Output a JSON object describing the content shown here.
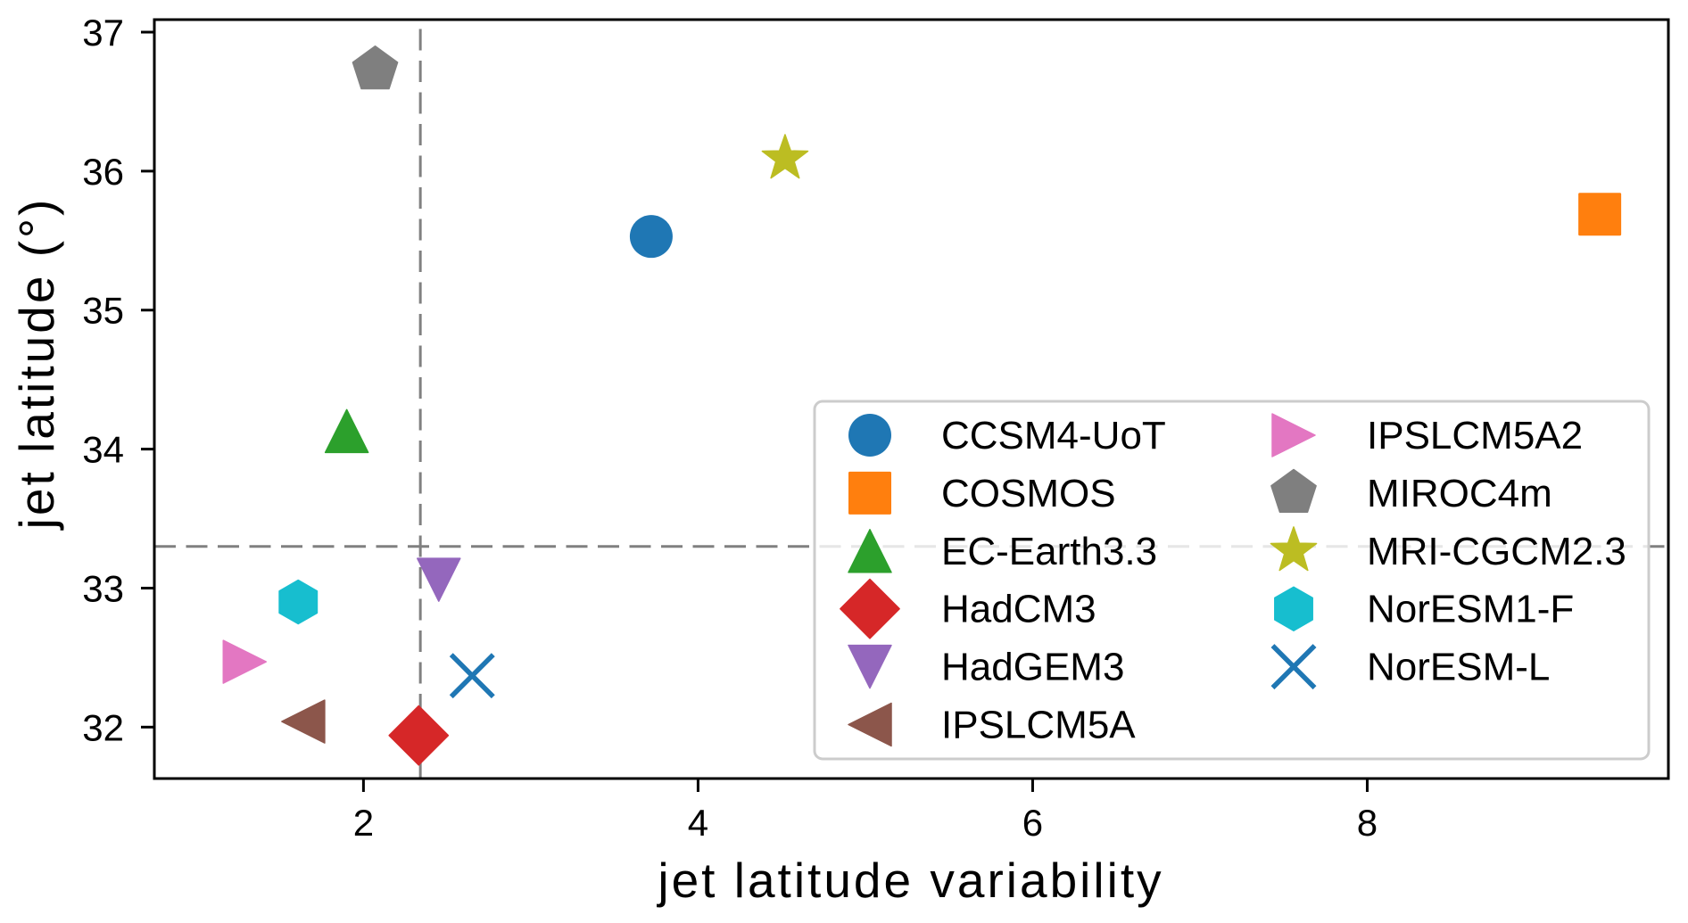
{
  "chart_data": {
    "type": "scatter",
    "title": "",
    "xlabel": "jet latitude variability",
    "ylabel": "jet latitude  (°)",
    "xlim": [
      0.75,
      9.8
    ],
    "ylim": [
      31.63,
      37.09
    ],
    "xticks": [
      2,
      4,
      6,
      8
    ],
    "xtick_labels": [
      "2",
      "4",
      "6",
      "8"
    ],
    "yticks": [
      32,
      33,
      34,
      35,
      36,
      37
    ],
    "ytick_labels": [
      "32",
      "33",
      "34",
      "35",
      "36",
      "37"
    ],
    "grid": false,
    "legend": {
      "placement": "lower-right",
      "columns": 2
    },
    "reference_lines": [
      {
        "orientation": "vertical",
        "value": 2.34,
        "style": "dashed",
        "color": "#808080"
      },
      {
        "orientation": "horizontal",
        "value": 33.3,
        "style": "dashed",
        "color": "#808080"
      }
    ],
    "series": [
      {
        "name": "CCSM4-UoT",
        "x": 3.72,
        "y": 35.53,
        "marker": "circle",
        "color": "#1f77b4"
      },
      {
        "name": "COSMOS",
        "x": 9.39,
        "y": 35.69,
        "marker": "square",
        "color": "#ff7f0e"
      },
      {
        "name": "EC-Earth3.3",
        "x": 1.9,
        "y": 34.13,
        "marker": "triangle-up",
        "color": "#2ca02c"
      },
      {
        "name": "HadCM3",
        "x": 2.33,
        "y": 31.94,
        "marker": "diamond",
        "color": "#d62728"
      },
      {
        "name": "HadGEM3",
        "x": 2.45,
        "y": 33.06,
        "marker": "triangle-down",
        "color": "#9467bd"
      },
      {
        "name": "IPSLCM5A",
        "x": 1.64,
        "y": 32.04,
        "marker": "triangle-left",
        "color": "#8c564b"
      },
      {
        "name": "IPSLCM5A2",
        "x": 1.29,
        "y": 32.47,
        "marker": "triangle-right",
        "color": "#e377c2"
      },
      {
        "name": "MIROC4m",
        "x": 2.07,
        "y": 36.73,
        "marker": "pentagon",
        "color": "#7f7f7f"
      },
      {
        "name": "MRI-CGCM2.3",
        "x": 4.52,
        "y": 36.09,
        "marker": "star",
        "color": "#bcbd22"
      },
      {
        "name": "NorESM1-F",
        "x": 1.61,
        "y": 32.9,
        "marker": "hexagon",
        "color": "#17becf"
      },
      {
        "name": "NorESM-L",
        "x": 2.65,
        "y": 32.37,
        "marker": "x",
        "color": "#1f77b4"
      }
    ]
  }
}
